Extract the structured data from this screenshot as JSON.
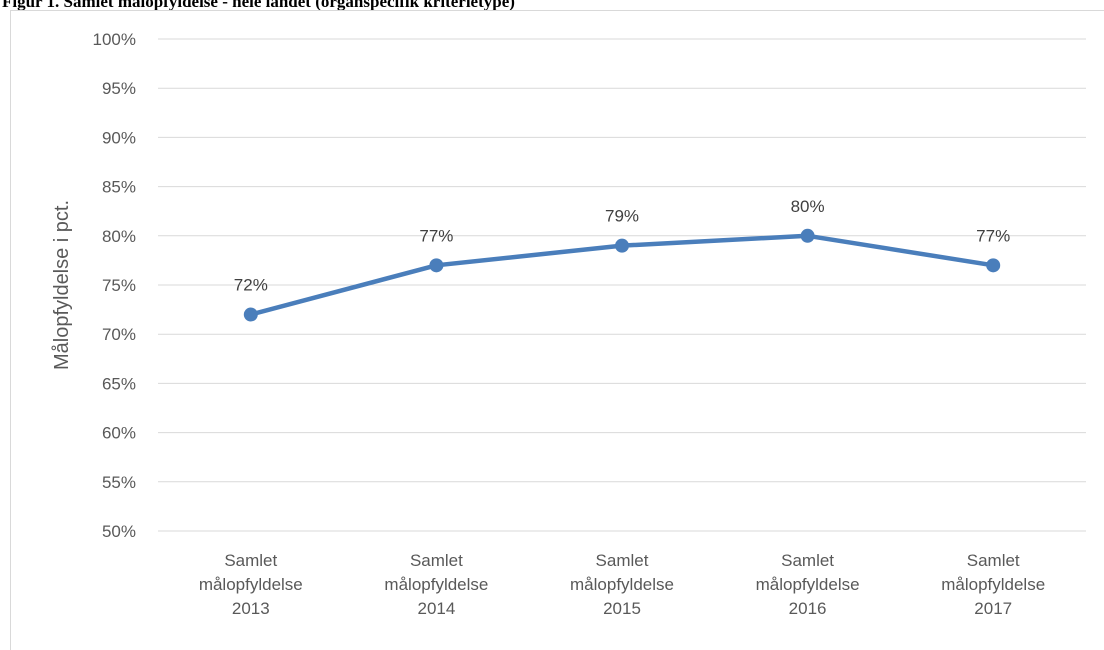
{
  "chart_data": {
    "type": "line",
    "title": "Figur 1. Samlet målopfyldelse - hele landet (organspecifik kriterietype)",
    "ylabel": "Målopfyldelse i pct.",
    "xlabel": "",
    "ylim": [
      50,
      100
    ],
    "ytick_step": 5,
    "ytick_format": "percent",
    "grid": true,
    "legend": "none",
    "categories": [
      [
        "Samlet",
        "målopfyldelse",
        "2013"
      ],
      [
        "Samlet",
        "målopfyldelse",
        "2014"
      ],
      [
        "Samlet",
        "målopfyldelse",
        "2015"
      ],
      [
        "Samlet",
        "målopfyldelse",
        "2016"
      ],
      [
        "Samlet",
        "målopfyldelse",
        "2017"
      ]
    ],
    "series": [
      {
        "values": [
          72,
          77,
          79,
          80,
          77
        ],
        "labels": [
          "72%",
          "77%",
          "79%",
          "80%",
          "77%"
        ],
        "color": "#4a7ebb"
      }
    ],
    "gridline_color": "#d9d9d9"
  }
}
